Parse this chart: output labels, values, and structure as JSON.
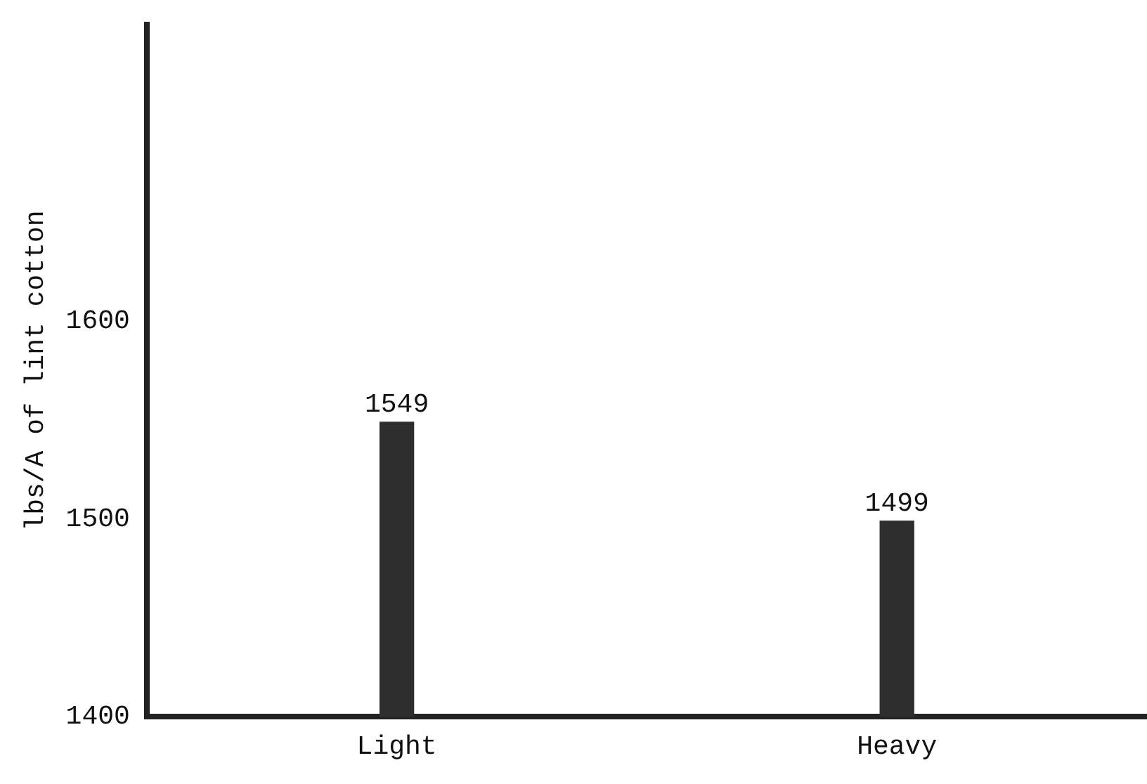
{
  "chart_data": {
    "type": "bar",
    "ylabel": "lbs/A of lint cotton",
    "categories": [
      "Light",
      "Heavy"
    ],
    "values": [
      1549,
      1499
    ],
    "color": "#2e2e2e",
    "ylim": [
      1400,
      1750
    ],
    "yticks": [
      1400,
      1500,
      1600
    ],
    "grid": false,
    "legend": false,
    "data_labels": true
  }
}
